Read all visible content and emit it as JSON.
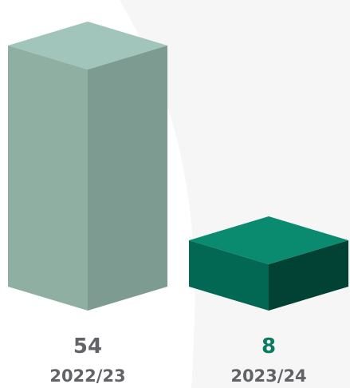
{
  "chart_data": {
    "type": "bar",
    "categories": [
      "2022/23",
      "2023/24"
    ],
    "values": [
      54,
      8
    ],
    "title": "",
    "xlabel": "",
    "ylabel": "",
    "ylim": [
      0,
      54
    ],
    "grid": false,
    "bar_colors": [
      {
        "top": "#a1c5ba",
        "left": "#8fafa3",
        "right": "#7d9b90",
        "label": "#616367"
      },
      {
        "top": "#0a8a6f",
        "left": "#036853",
        "right": "#024235",
        "label": "#0b7a62"
      }
    ],
    "background_panel_color": "#f6f6f6"
  }
}
